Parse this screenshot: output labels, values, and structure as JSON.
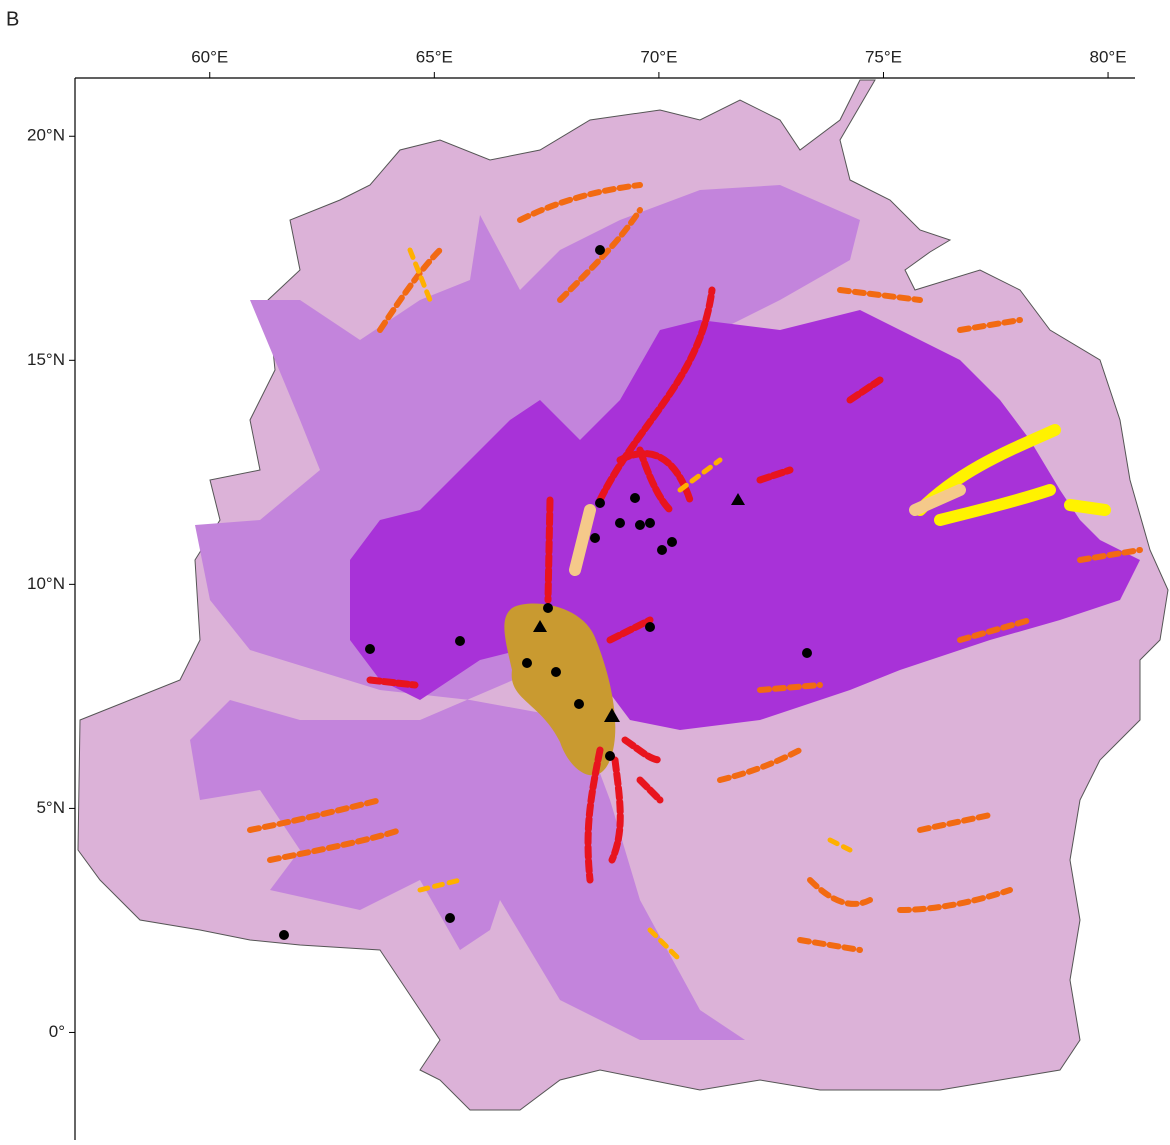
{
  "panel_label": "B",
  "longitude_ticks": [
    {
      "value": 60,
      "label": "60°E"
    },
    {
      "value": 65,
      "label": "65°E"
    },
    {
      "value": 70,
      "label": "70°E"
    },
    {
      "value": 75,
      "label": "75°E"
    },
    {
      "value": 80,
      "label": "80°E"
    }
  ],
  "latitude_ticks": [
    {
      "value": 20,
      "label": "20°N"
    },
    {
      "value": 15,
      "label": "15°N"
    },
    {
      "value": 10,
      "label": "10°N"
    },
    {
      "value": 5,
      "label": "5°N"
    },
    {
      "value": 0,
      "label": "0°"
    }
  ],
  "xlim": [
    57,
    80.6
  ],
  "ylim": [
    -2.4,
    21.3
  ]
}
